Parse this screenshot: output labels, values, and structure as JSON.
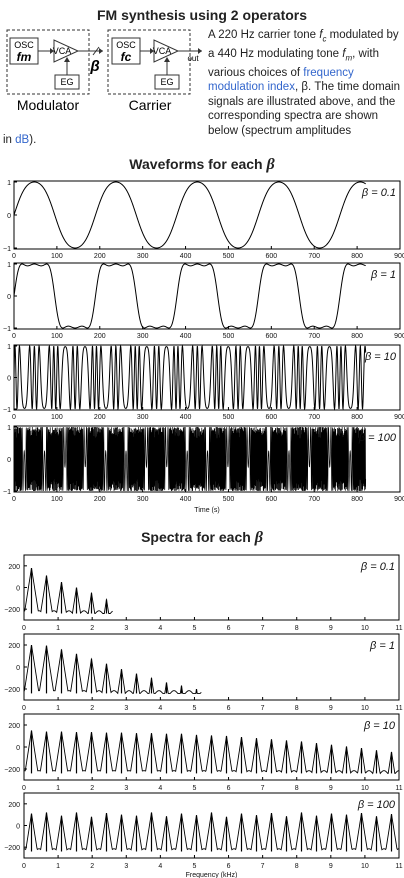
{
  "title": "FM synthesis using 2 operators",
  "diagram": {
    "osc_label": "OSC",
    "vca_label": "VCA",
    "eg_label": "EG",
    "mod_freq": "fm",
    "car_freq": "fc",
    "beta": "β",
    "out_label": "out",
    "modulator_label": "Modulator",
    "carrier_label": "Carrier"
  },
  "description": {
    "p1": "A 220 Hz carrier tone ",
    "fc_sym": "f",
    "fc_sub": "c",
    "p2": " modulated by a 440 Hz modulating tone ",
    "fm_sym": "f",
    "fm_sub": "m",
    "p3": ", with various choices of ",
    "link1": "frequency modulation index",
    "p4": ", β. The time domain signals are illustrated above, and the corresponding spectra are shown below (spectrum amplitudes",
    "tail_p1": "in ",
    "link2": "dB",
    "tail_p2": ")."
  },
  "waveforms_heading": "Waveforms for each",
  "spectra_heading": "Spectra for each",
  "beta_symbol": "β",
  "chart_data": [
    {
      "type": "line",
      "panel": "waveform",
      "label": "β = 0.1",
      "beta": 0.1,
      "ylim": [
        -1,
        1
      ],
      "yticks": [
        "1",
        "0",
        "−1"
      ],
      "xticks": [
        "0",
        "100",
        "200",
        "300",
        "400",
        "500",
        "600",
        "700",
        "800",
        "900"
      ],
      "xlim": [
        0,
        900
      ],
      "xlabel": "",
      "carrier_hz": 220,
      "modulator_hz": 440
    },
    {
      "type": "line",
      "panel": "waveform",
      "label": "β = 1",
      "beta": 1,
      "ylim": [
        -1,
        1
      ],
      "yticks": [
        "1",
        "0",
        "−1"
      ],
      "xticks": [
        "0",
        "100",
        "200",
        "300",
        "400",
        "500",
        "600",
        "700",
        "800",
        "900"
      ],
      "xlim": [
        0,
        900
      ],
      "xlabel": "",
      "carrier_hz": 220,
      "modulator_hz": 440
    },
    {
      "type": "line",
      "panel": "waveform",
      "label": "β = 10",
      "beta": 10,
      "ylim": [
        -1,
        1
      ],
      "yticks": [
        "1",
        "0",
        "−1"
      ],
      "xticks": [
        "0",
        "100",
        "200",
        "300",
        "400",
        "500",
        "600",
        "700",
        "800",
        "900"
      ],
      "xlim": [
        0,
        900
      ],
      "xlabel": "",
      "carrier_hz": 220,
      "modulator_hz": 440
    },
    {
      "type": "line",
      "panel": "waveform",
      "label": "β = 100",
      "beta": 100,
      "ylim": [
        -1,
        1
      ],
      "yticks": [
        "1",
        "0",
        "−1"
      ],
      "xticks": [
        "0",
        "100",
        "200",
        "300",
        "400",
        "500",
        "600",
        "700",
        "800",
        "900"
      ],
      "xlim": [
        0,
        900
      ],
      "xlabel": "Time (s)",
      "carrier_hz": 220,
      "modulator_hz": 440
    },
    {
      "type": "line",
      "panel": "spectrum",
      "label": "β = 0.1",
      "beta": 0.1,
      "ylim": [
        -300,
        300
      ],
      "yticks": [
        "200",
        "0",
        "−200"
      ],
      "xticks": [
        "0",
        "1",
        "2",
        "3",
        "4",
        "5",
        "6",
        "7",
        "8",
        "9",
        "10",
        "11"
      ],
      "xlim": [
        0,
        11
      ],
      "xlabel": "",
      "peak_khz": [
        0.22,
        0.66,
        1.1,
        1.54,
        1.98,
        2.42
      ],
      "peak_db": [
        180,
        110,
        50,
        0,
        -50,
        -110
      ]
    },
    {
      "type": "line",
      "panel": "spectrum",
      "label": "β = 1",
      "beta": 1,
      "ylim": [
        -300,
        300
      ],
      "yticks": [
        "200",
        "0",
        "−200"
      ],
      "xticks": [
        "0",
        "1",
        "2",
        "3",
        "4",
        "5",
        "6",
        "7",
        "8",
        "9",
        "10",
        "11"
      ],
      "xlim": [
        0,
        11
      ],
      "xlabel": "",
      "peak_khz": [
        0.22,
        0.66,
        1.1,
        1.54,
        1.98,
        2.42,
        2.86,
        3.3,
        3.74,
        4.18,
        4.62,
        5.06
      ],
      "peak_db": [
        200,
        195,
        160,
        120,
        75,
        30,
        -20,
        -60,
        -100,
        -140,
        -170,
        -200
      ]
    },
    {
      "type": "line",
      "panel": "spectrum",
      "label": "β = 10",
      "beta": 10,
      "ylim": [
        -300,
        300
      ],
      "yticks": [
        "200",
        "0",
        "−200"
      ],
      "xticks": [
        "0",
        "1",
        "2",
        "3",
        "4",
        "5",
        "6",
        "7",
        "8",
        "9",
        "10",
        "11"
      ],
      "xlim": [
        0,
        11
      ],
      "xlabel": "",
      "peak_khz": [
        0.22,
        0.66,
        1.1,
        1.54,
        1.98,
        2.42,
        2.86,
        3.3,
        3.74,
        4.18,
        4.62,
        5.06,
        5.5,
        5.94,
        6.38,
        6.82,
        7.26,
        7.7,
        8.14,
        8.58,
        9.02,
        9.46,
        9.9,
        10.34,
        10.78
      ],
      "peak_db": [
        150,
        140,
        140,
        135,
        135,
        130,
        130,
        125,
        125,
        120,
        120,
        110,
        105,
        100,
        90,
        80,
        70,
        60,
        50,
        35,
        20,
        5,
        -10,
        -30,
        -45
      ]
    },
    {
      "type": "line",
      "panel": "spectrum",
      "label": "β = 100",
      "beta": 100,
      "ylim": [
        -300,
        300
      ],
      "yticks": [
        "200",
        "0",
        "−200"
      ],
      "xticks": [
        "0",
        "1",
        "2",
        "3",
        "4",
        "5",
        "6",
        "7",
        "8",
        "9",
        "10",
        "11"
      ],
      "xlim": [
        0,
        11
      ],
      "xlabel": "Frequency (kHz)",
      "peak_khz": [
        0.22,
        0.66,
        1.1,
        1.54,
        1.98,
        2.42,
        2.86,
        3.3,
        3.74,
        4.18,
        4.62,
        5.06,
        5.5,
        5.94,
        6.38,
        6.82,
        7.26,
        7.7,
        8.14,
        8.58,
        9.02,
        9.46,
        9.9,
        10.34,
        10.78
      ],
      "peak_db": [
        110,
        120,
        90,
        120,
        80,
        115,
        100,
        90,
        120,
        85,
        110,
        95,
        120,
        80,
        110,
        95,
        115,
        85,
        120,
        90,
        110,
        100,
        115,
        85,
        105
      ]
    }
  ]
}
